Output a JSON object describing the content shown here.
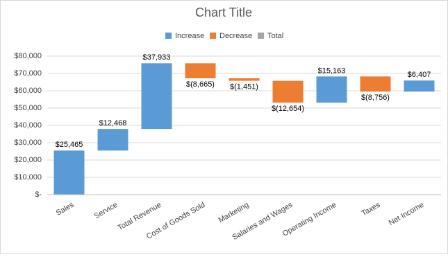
{
  "chart_data": {
    "type": "waterfall",
    "title": "Chart Title",
    "categories": [
      "Sales",
      "Service",
      "Total Revenue",
      "Cost of Goods Sold",
      "Marketing",
      "Salaries and Wages",
      "Operating Income",
      "Taxes",
      "Net Income"
    ],
    "values": [
      25465,
      12468,
      37933,
      -8665,
      -1451,
      -12654,
      15163,
      -8756,
      6407
    ],
    "value_labels": [
      "$25,465",
      "$12,468",
      "$37,933",
      "$(8,665)",
      "$(1,451)",
      "$(12,654)",
      "$15,163",
      "$(8,756)",
      "$6,407"
    ],
    "legend": [
      {
        "name": "Increase",
        "color": "#5b9bd5"
      },
      {
        "name": "Decrease",
        "color": "#ed7d31"
      },
      {
        "name": "Total",
        "color": "#a5a5a5"
      }
    ],
    "ylim": [
      0,
      80000
    ],
    "yticks": [
      {
        "value": 0,
        "label": "$-"
      },
      {
        "value": 10000,
        "label": "$10,000"
      },
      {
        "value": 20000,
        "label": "$20,000"
      },
      {
        "value": 30000,
        "label": "$30,000"
      },
      {
        "value": 40000,
        "label": "$40,000"
      },
      {
        "value": 50000,
        "label": "$50,000"
      },
      {
        "value": 60000,
        "label": "$60,000"
      },
      {
        "value": 70000,
        "label": "$70,000"
      },
      {
        "value": 80000,
        "label": "$80,000"
      }
    ],
    "grid": true
  }
}
